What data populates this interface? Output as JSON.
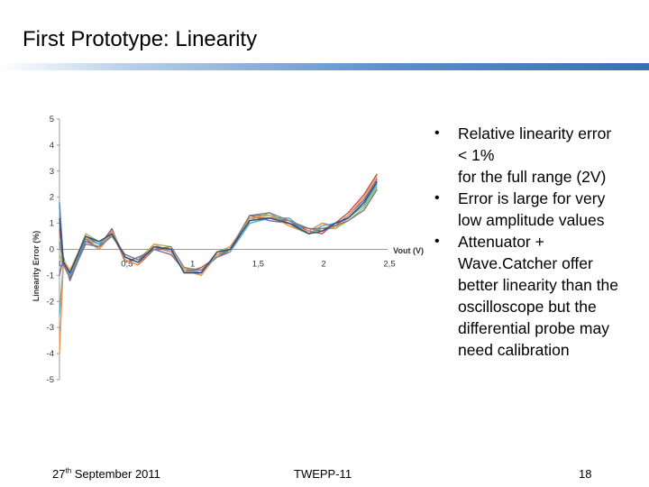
{
  "slide": {
    "title": "First Prototype: Linearity",
    "bullets": [
      [
        "Relative linearity error",
        "< 1%",
        "for the full range (2V)"
      ],
      [
        "Error is large for very",
        "low amplitude values"
      ],
      [
        "Attenuator +",
        "Wave.Catcher offer",
        "better linearity than the",
        "oscilloscope but the",
        "differential probe may",
        "need calibration"
      ]
    ],
    "footer": {
      "date_day": "27",
      "date_suffix": "th",
      "date_rest": " September 2011",
      "conference": "TWEPP-11",
      "page": "18"
    }
  },
  "chart_data": {
    "type": "line",
    "xlabel": "Vout (V)",
    "ylabel": "Linearity Error (%)",
    "xlim": [
      0,
      2.5
    ],
    "ylim": [
      -5,
      5
    ],
    "x_ticks": [
      "0",
      "0,5",
      "1",
      "1,5",
      "2",
      "2,5"
    ],
    "y_ticks": [
      "5",
      "4",
      "3",
      "2",
      "1",
      "0",
      "-1",
      "-2",
      "-3",
      "-4",
      "-5"
    ],
    "grid": false,
    "colors": [
      "#4f81bd",
      "#c0504d",
      "#9bbb59",
      "#8064a2",
      "#4bacc6",
      "#f79646",
      "#7f7f7f",
      "#2c4d75",
      "#772c2a",
      "#5f7530",
      "#4d3b62",
      "#276a7c",
      "#b65708",
      "#a5a5a5",
      "#ff6699"
    ],
    "x": [
      0.0,
      0.03,
      0.08,
      0.2,
      0.3,
      0.4,
      0.5,
      0.6,
      0.72,
      0.85,
      0.95,
      1.08,
      1.2,
      1.3,
      1.45,
      1.6,
      1.75,
      1.9,
      2.0,
      2.1,
      2.2,
      2.32,
      2.42
    ],
    "series": [
      {
        "values": [
          1.8,
          -0.5,
          -1.0,
          0.5,
          0.2,
          0.7,
          -0.3,
          -0.5,
          0.1,
          -0.1,
          -0.8,
          -0.9,
          -0.2,
          0.0,
          1.3,
          1.3,
          1.0,
          0.7,
          1.0,
          0.9,
          1.2,
          1.8,
          2.6
        ]
      },
      {
        "values": [
          0.8,
          -0.4,
          -1.1,
          0.4,
          0.0,
          0.6,
          -0.4,
          -0.6,
          0.0,
          0.0,
          -0.9,
          -0.7,
          -0.3,
          -0.1,
          1.2,
          1.2,
          1.1,
          0.7,
          0.6,
          1.0,
          1.4,
          2.1,
          2.9
        ]
      },
      {
        "values": [
          -0.2,
          -0.6,
          -0.9,
          0.6,
          0.3,
          0.5,
          -0.2,
          -0.4,
          0.2,
          0.1,
          -0.7,
          -1.0,
          -0.1,
          0.1,
          1.1,
          1.4,
          0.9,
          0.6,
          0.8,
          0.8,
          1.1,
          1.6,
          2.4
        ]
      },
      {
        "values": [
          -1.0,
          -0.3,
          -1.2,
          0.3,
          0.1,
          0.8,
          -0.5,
          -0.3,
          0.0,
          -0.2,
          -0.8,
          -0.8,
          -0.3,
          0.0,
          1.3,
          1.1,
          1.0,
          0.8,
          0.7,
          0.9,
          1.3,
          1.9,
          2.7
        ]
      },
      {
        "values": [
          -2.5,
          -0.5,
          -1.0,
          0.4,
          0.2,
          0.6,
          -0.3,
          -0.5,
          0.1,
          0.0,
          -0.9,
          -0.9,
          -0.2,
          -0.1,
          1.0,
          1.2,
          1.2,
          0.6,
          0.9,
          1.0,
          1.2,
          1.7,
          2.5
        ]
      },
      {
        "values": [
          -4.0,
          -0.4,
          -0.8,
          0.5,
          0.0,
          0.7,
          -0.4,
          -0.6,
          0.2,
          -0.1,
          -0.8,
          -1.0,
          -0.2,
          0.1,
          1.2,
          1.3,
          0.9,
          0.7,
          1.0,
          0.8,
          1.3,
          2.0,
          2.8
        ]
      },
      {
        "values": [
          0.3,
          -0.6,
          -1.1,
          0.2,
          0.1,
          0.5,
          -0.2,
          -0.4,
          0.0,
          0.1,
          -0.7,
          -0.8,
          -0.3,
          0.0,
          1.3,
          1.4,
          1.1,
          0.8,
          0.8,
          0.9,
          1.1,
          1.5,
          2.3
        ]
      },
      {
        "values": [
          1.2,
          -0.5,
          -0.9,
          0.5,
          0.3,
          0.6,
          -0.3,
          -0.5,
          0.1,
          0.0,
          -0.9,
          -0.9,
          -0.1,
          0.0,
          1.1,
          1.2,
          1.0,
          0.6,
          0.7,
          1.0,
          1.2,
          1.8,
          2.6
        ]
      }
    ]
  }
}
